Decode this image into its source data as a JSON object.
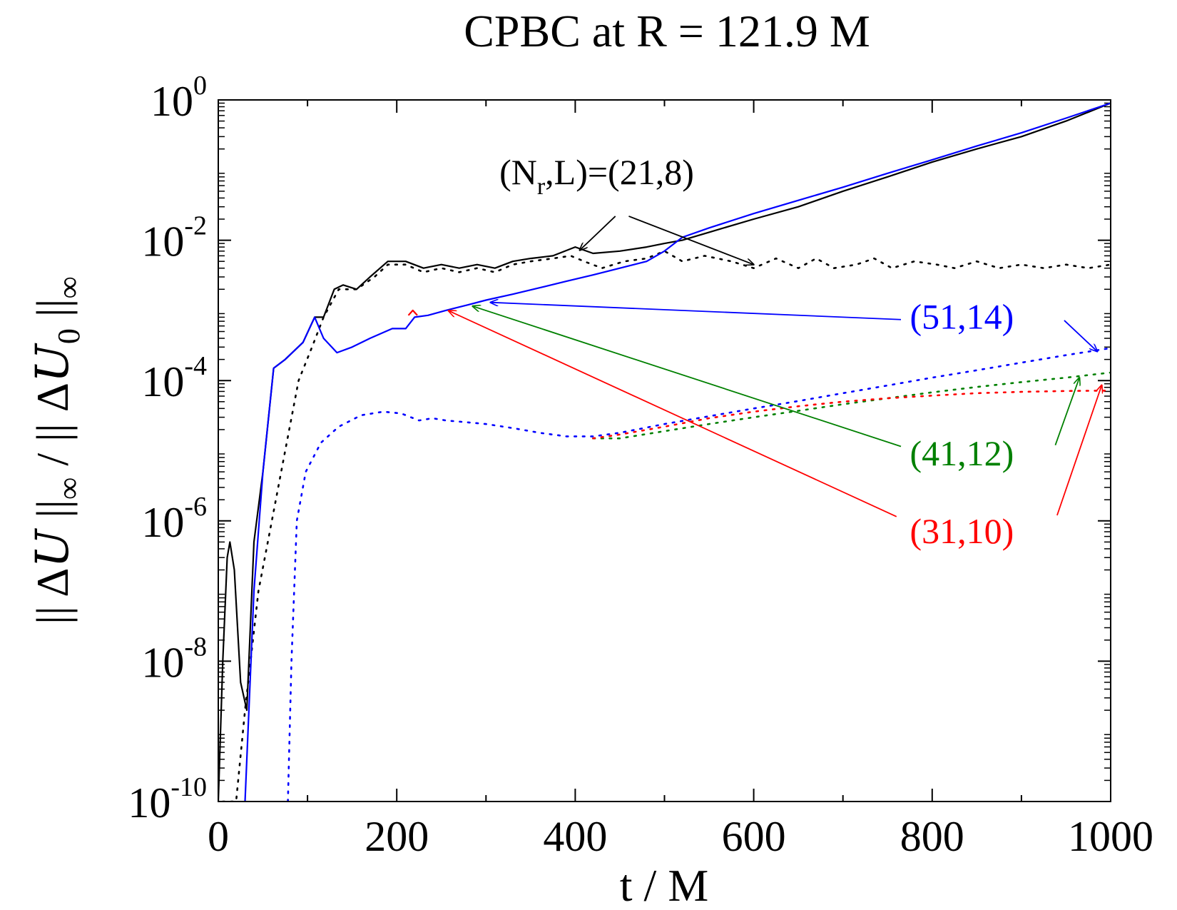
{
  "chart_data": {
    "type": "line",
    "title": "CPBC at R = 121.9 M",
    "xlabel": "t / M",
    "ylabel": "|| ΔU ||∞ / || ΔU₀ ||∞",
    "ylabel_parts": [
      "|| Δ",
      "U",
      " ||",
      "∞",
      " / || Δ",
      "U",
      "0",
      " ||",
      "∞"
    ],
    "xlim": [
      0,
      1000
    ],
    "ylim": [
      1e-10,
      1
    ],
    "yscale": "log",
    "x_ticks": [
      0,
      200,
      400,
      600,
      800,
      1000
    ],
    "x_tick_labels": [
      "0",
      "200",
      "400",
      "600",
      "800",
      "1000"
    ],
    "y_ticks": [
      {
        "value": 1,
        "base": "10",
        "exp": "0"
      },
      {
        "value": 0.01,
        "base": "10",
        "exp": "-2"
      },
      {
        "value": 0.0001,
        "base": "10",
        "exp": "-4"
      },
      {
        "value": 1e-06,
        "base": "10",
        "exp": "-6"
      },
      {
        "value": 1e-08,
        "base": "10",
        "exp": "-8"
      },
      {
        "value": 1e-10,
        "base": "10",
        "exp": "-10"
      }
    ],
    "colors": {
      "black": "#000000",
      "blue": "#0000ff",
      "green": "#008000",
      "red": "#ff0000"
    },
    "series": [
      {
        "style": "solid",
        "color": "#000000",
        "points": [
          [
            0,
            1e-10
          ],
          [
            5,
            1e-08
          ],
          [
            10,
            3e-07
          ],
          [
            13,
            5e-07
          ],
          [
            18,
            2e-07
          ],
          [
            25,
            5e-09
          ],
          [
            32,
            2e-09
          ],
          [
            40,
            5e-07
          ],
          [
            50,
            5e-06
          ],
          [
            62,
            0.00015
          ],
          [
            75,
            0.0002
          ],
          [
            95,
            0.00035
          ],
          [
            108,
            0.0008
          ],
          [
            118,
            0.0008
          ],
          [
            130,
            0.002
          ],
          [
            140,
            0.0023
          ],
          [
            155,
            0.002
          ],
          [
            170,
            0.003
          ],
          [
            190,
            0.005
          ],
          [
            210,
            0.005
          ],
          [
            230,
            0.004
          ],
          [
            250,
            0.0045
          ],
          [
            270,
            0.004
          ],
          [
            290,
            0.0045
          ],
          [
            310,
            0.004
          ],
          [
            330,
            0.005
          ],
          [
            350,
            0.0055
          ],
          [
            375,
            0.006
          ],
          [
            400,
            0.008
          ],
          [
            420,
            0.0065
          ],
          [
            450,
            0.007
          ],
          [
            480,
            0.008
          ],
          [
            500,
            0.009
          ],
          [
            520,
            0.01
          ],
          [
            550,
            0.013
          ],
          [
            600,
            0.02
          ],
          [
            650,
            0.03
          ],
          [
            700,
            0.05
          ],
          [
            750,
            0.08
          ],
          [
            800,
            0.13
          ],
          [
            850,
            0.2
          ],
          [
            900,
            0.3
          ],
          [
            950,
            0.5
          ],
          [
            1000,
            0.9
          ]
        ]
      },
      {
        "style": "dotted",
        "color": "#000000",
        "points": [
          [
            5,
            1e-10
          ],
          [
            20,
            1e-10
          ],
          [
            30,
            2e-09
          ],
          [
            45,
            1e-07
          ],
          [
            60,
            1e-06
          ],
          [
            75,
            1e-05
          ],
          [
            90,
            0.0001
          ],
          [
            105,
            0.0003
          ],
          [
            118,
            0.0008
          ],
          [
            135,
            0.002
          ],
          [
            155,
            0.002
          ],
          [
            175,
            0.003
          ],
          [
            190,
            0.0045
          ],
          [
            210,
            0.0045
          ],
          [
            230,
            0.0035
          ],
          [
            250,
            0.004
          ],
          [
            270,
            0.0035
          ],
          [
            290,
            0.004
          ],
          [
            310,
            0.0035
          ],
          [
            330,
            0.0045
          ],
          [
            350,
            0.005
          ],
          [
            375,
            0.0055
          ],
          [
            395,
            0.006
          ],
          [
            410,
            0.005
          ],
          [
            430,
            0.004
          ],
          [
            455,
            0.005
          ],
          [
            480,
            0.0055
          ],
          [
            500,
            0.007
          ],
          [
            520,
            0.005
          ],
          [
            545,
            0.006
          ],
          [
            575,
            0.005
          ],
          [
            600,
            0.004
          ],
          [
            625,
            0.0055
          ],
          [
            650,
            0.004
          ],
          [
            670,
            0.0055
          ],
          [
            690,
            0.004
          ],
          [
            715,
            0.0045
          ],
          [
            735,
            0.0055
          ],
          [
            755,
            0.004
          ],
          [
            780,
            0.005
          ],
          [
            805,
            0.0045
          ],
          [
            825,
            0.004
          ],
          [
            850,
            0.005
          ],
          [
            875,
            0.004
          ],
          [
            900,
            0.0045
          ],
          [
            925,
            0.004
          ],
          [
            950,
            0.0045
          ],
          [
            975,
            0.004
          ],
          [
            1000,
            0.0045
          ]
        ]
      },
      {
        "style": "solid",
        "color": "#ff0000",
        "points": [
          [
            213,
            0.00085
          ],
          [
            218,
            0.001
          ],
          [
            223,
            0.00085
          ]
        ]
      },
      {
        "style": "solid",
        "color": "#0000ff",
        "points": [
          [
            30,
            1e-10
          ],
          [
            40,
            1e-07
          ],
          [
            50,
            5e-06
          ],
          [
            62,
            0.00015
          ],
          [
            75,
            0.0002
          ],
          [
            95,
            0.00035
          ],
          [
            108,
            0.0008
          ],
          [
            118,
            0.0004
          ],
          [
            133,
            0.00025
          ],
          [
            150,
            0.0003
          ],
          [
            170,
            0.0004
          ],
          [
            195,
            0.00055
          ],
          [
            210,
            0.00055
          ],
          [
            220,
            0.0008
          ],
          [
            235,
            0.00085
          ],
          [
            255,
            0.001
          ],
          [
            280,
            0.0012
          ],
          [
            300,
            0.0014
          ],
          [
            330,
            0.0017
          ],
          [
            360,
            0.0021
          ],
          [
            390,
            0.0026
          ],
          [
            420,
            0.0032
          ],
          [
            450,
            0.004
          ],
          [
            480,
            0.005
          ],
          [
            500,
            0.007
          ],
          [
            520,
            0.011
          ],
          [
            550,
            0.015
          ],
          [
            600,
            0.024
          ],
          [
            650,
            0.037
          ],
          [
            700,
            0.057
          ],
          [
            750,
            0.09
          ],
          [
            800,
            0.14
          ],
          [
            850,
            0.22
          ],
          [
            900,
            0.34
          ],
          [
            950,
            0.55
          ],
          [
            1000,
            0.9
          ]
        ]
      },
      {
        "style": "dotted",
        "color": "#0000ff",
        "points": [
          [
            78,
            1e-10
          ],
          [
            82,
            1e-08
          ],
          [
            88,
            1e-06
          ],
          [
            98,
            5e-06
          ],
          [
            115,
            1.3e-05
          ],
          [
            135,
            2.2e-05
          ],
          [
            160,
            3.2e-05
          ],
          [
            185,
            3.6e-05
          ],
          [
            205,
            3.4e-05
          ],
          [
            225,
            2.7e-05
          ],
          [
            240,
            2.9e-05
          ],
          [
            255,
            2.7e-05
          ],
          [
            270,
            2.6e-05
          ],
          [
            300,
            2.4e-05
          ],
          [
            330,
            2.1e-05
          ],
          [
            360,
            1.8e-05
          ],
          [
            390,
            1.6e-05
          ],
          [
            420,
            1.6e-05
          ],
          [
            450,
            1.8e-05
          ],
          [
            500,
            2.4e-05
          ],
          [
            550,
            3.1e-05
          ],
          [
            600,
            4e-05
          ],
          [
            650,
            5.1e-05
          ],
          [
            700,
            6.6e-05
          ],
          [
            750,
            8.5e-05
          ],
          [
            800,
            0.00011
          ],
          [
            850,
            0.00014
          ],
          [
            900,
            0.00018
          ],
          [
            950,
            0.00023
          ],
          [
            1000,
            0.00029
          ]
        ]
      },
      {
        "style": "dotted",
        "color": "#008000",
        "points": [
          [
            420,
            1.5e-05
          ],
          [
            450,
            1.5e-05
          ],
          [
            500,
            1.9e-05
          ],
          [
            550,
            2.4e-05
          ],
          [
            600,
            3e-05
          ],
          [
            650,
            3.7e-05
          ],
          [
            700,
            4.6e-05
          ],
          [
            750,
            5.6e-05
          ],
          [
            800,
            6.8e-05
          ],
          [
            850,
            8.1e-05
          ],
          [
            900,
            9.5e-05
          ],
          [
            950,
            0.00011
          ],
          [
            1000,
            0.00013
          ]
        ]
      },
      {
        "style": "dotted",
        "color": "#ff0000",
        "points": [
          [
            420,
            1.5e-05
          ],
          [
            450,
            1.7e-05
          ],
          [
            500,
            2.2e-05
          ],
          [
            550,
            2.9e-05
          ],
          [
            600,
            3.6e-05
          ],
          [
            650,
            4.3e-05
          ],
          [
            700,
            5e-05
          ],
          [
            750,
            5.6e-05
          ],
          [
            800,
            6.1e-05
          ],
          [
            850,
            6.6e-05
          ],
          [
            900,
            6.9e-05
          ],
          [
            950,
            7.1e-05
          ],
          [
            1000,
            7.2e-05
          ]
        ]
      }
    ],
    "annotations": [
      {
        "id": "ann-21-8",
        "color": "#000000",
        "parts": [
          "(N",
          "r",
          ",L)=(21,8)"
        ],
        "text_pos": [
          315,
          0.063
        ],
        "arrows": [
          {
            "from": [
              445,
              0.022
            ],
            "to": [
              405,
              0.0072
            ]
          },
          {
            "from": [
              460,
              0.022
            ],
            "to": [
              600,
              0.0045
            ]
          }
        ]
      },
      {
        "id": "ann-51-14",
        "color": "#0000ff",
        "parts": [
          "(51,14)"
        ],
        "text_pos": [
          775,
          0.00055
        ],
        "arrows": [
          {
            "from": [
              765,
              0.00074
            ],
            "to": [
              305,
              0.0013
            ]
          },
          {
            "from": [
              948,
              0.00072
            ],
            "to": [
              985,
              0.00026
            ]
          }
        ]
      },
      {
        "id": "ann-41-12",
        "color": "#008000",
        "parts": [
          "(41,12)"
        ],
        "text_pos": [
          775,
          6.2e-06
        ],
        "arrows": [
          {
            "from": [
              765,
              1.15e-05
            ],
            "to": [
              285,
              0.00115
            ]
          },
          {
            "from": [
              938,
              1.2e-05
            ],
            "to": [
              965,
              0.00011
            ]
          }
        ]
      },
      {
        "id": "ann-31-10",
        "color": "#ff0000",
        "parts": [
          "(31,10)"
        ],
        "text_pos": [
          775,
          4.8e-07
        ],
        "arrows": [
          {
            "from": [
              760,
              1.15e-06
            ],
            "to": [
              258,
              0.00099
            ]
          },
          {
            "from": [
              940,
              1.2e-06
            ],
            "to": [
              990,
              8.6e-05
            ]
          }
        ]
      }
    ]
  }
}
